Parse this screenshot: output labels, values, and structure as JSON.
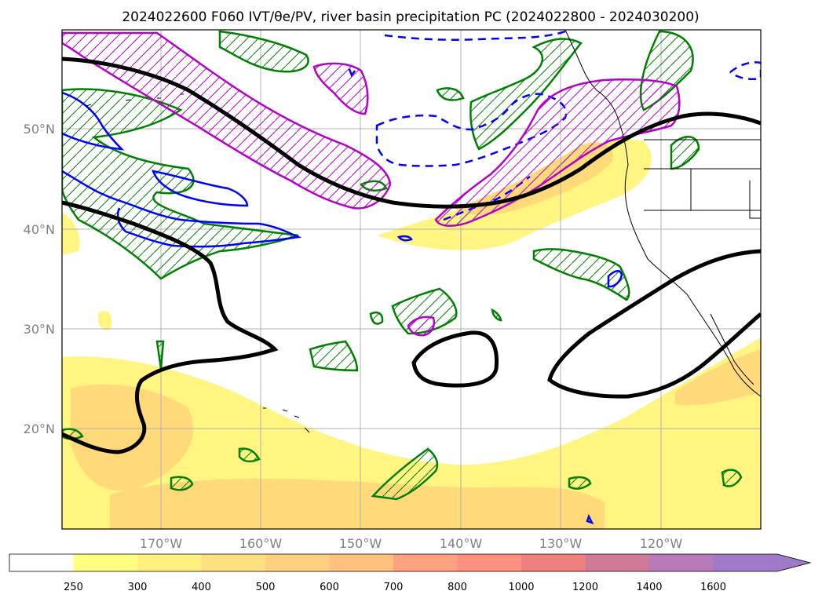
{
  "title": "2024022600 F060 IVT/θe/PV, river basin precipitation PC (2024022800 - 2024030200)",
  "latitude_labels": [
    "50°N",
    "40°N",
    "30°N",
    "20°N"
  ],
  "longitude_labels": [
    "170°W",
    "160°W",
    "150°W",
    "140°W",
    "130°W",
    "120°W"
  ],
  "colorbar": {
    "levels": [
      "250",
      "300",
      "400",
      "500",
      "600",
      "700",
      "800",
      "1000",
      "1200",
      "1400",
      "1600"
    ],
    "colors": [
      "#ffffff",
      "#ffff80",
      "#fff080",
      "#ffe080",
      "#ffd080",
      "#ffc080",
      "#ffa080",
      "#ff9080",
      "#ef8080",
      "#d07a9a",
      "#b87ab8",
      "#a07ac8"
    ],
    "extend": "max"
  },
  "colors": {
    "ivt_low": "#fff580",
    "ivt_mid": "#ffd97a",
    "theta_e_contour": "#000000",
    "pv_contour": "#b400c8",
    "positive_anomaly": "#008000",
    "negative_anomaly": "#0000ff",
    "grid": "#b0b0b0",
    "coastline": "#000000"
  }
}
